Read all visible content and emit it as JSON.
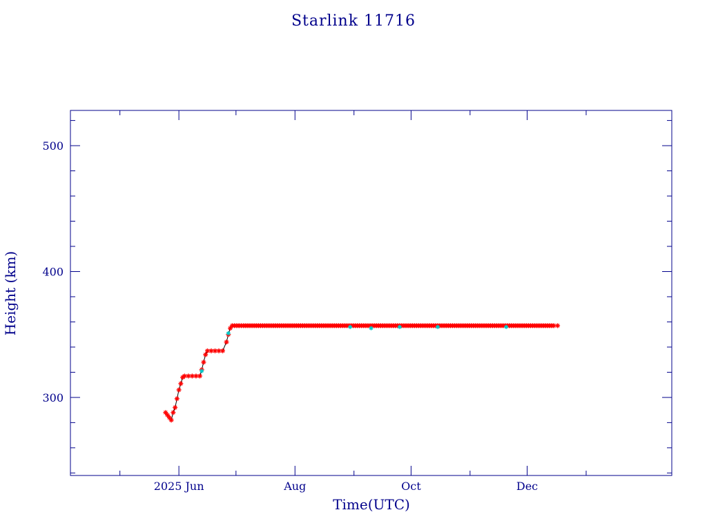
{
  "chart_data": {
    "type": "scatter",
    "title": "Starlink 11716",
    "xlabel": "Time(UTC)",
    "ylabel": "Height (km)",
    "x_axis_type": "date",
    "xlim": [
      "2025-04-05",
      "2026-02-15"
    ],
    "ylim": [
      238,
      528
    ],
    "x_ticks": [
      {
        "date": "2025-06-01",
        "label": "2025 Jun"
      },
      {
        "date": "2025-08-01",
        "label": "Aug"
      },
      {
        "date": "2025-10-01",
        "label": "Oct"
      },
      {
        "date": "2025-12-01",
        "label": "Dec"
      }
    ],
    "y_ticks": [
      300,
      400,
      500
    ],
    "grid": false,
    "legend": "none",
    "colors": {
      "axis": "#00008b",
      "series_primary": "#ff0000",
      "series_secondary": "#00cccc",
      "line": "#000000"
    },
    "series": [
      {
        "marker": "star",
        "color": "#ff0000",
        "points": [
          [
            "2025-05-25",
            288
          ],
          [
            "2025-05-26",
            286
          ],
          [
            "2025-05-27",
            284
          ],
          [
            "2025-05-28",
            282
          ],
          [
            "2025-05-29",
            288
          ],
          [
            "2025-05-30",
            292
          ],
          [
            "2025-05-31",
            299
          ],
          [
            "2025-06-01",
            306
          ],
          [
            "2025-06-02",
            311
          ],
          [
            "2025-06-03",
            316
          ],
          [
            "2025-06-04",
            317
          ],
          [
            "2025-06-06",
            317
          ],
          [
            "2025-06-08",
            317
          ],
          [
            "2025-06-10",
            317
          ],
          [
            "2025-06-12",
            317
          ],
          [
            "2025-06-13",
            322
          ],
          [
            "2025-06-14",
            328
          ],
          [
            "2025-06-15",
            334
          ],
          [
            "2025-06-16",
            337
          ],
          [
            "2025-06-18",
            337
          ],
          [
            "2025-06-20",
            337
          ],
          [
            "2025-06-22",
            337
          ],
          [
            "2025-06-24",
            337
          ],
          [
            "2025-06-26",
            344
          ],
          [
            "2025-06-27",
            350
          ],
          [
            "2025-06-28",
            355
          ],
          [
            "2025-06-29",
            357
          ],
          [
            "2025-07-05",
            357
          ],
          [
            "2025-07-15",
            357
          ],
          [
            "2025-07-25",
            357
          ],
          [
            "2025-08-05",
            357
          ],
          [
            "2025-08-15",
            357
          ],
          [
            "2025-08-25",
            357
          ],
          [
            "2025-09-05",
            357
          ],
          [
            "2025-09-15",
            357
          ],
          [
            "2025-09-25",
            357
          ],
          [
            "2025-10-05",
            357
          ],
          [
            "2025-10-15",
            357
          ],
          [
            "2025-10-25",
            357
          ],
          [
            "2025-11-05",
            357
          ],
          [
            "2025-11-15",
            357
          ],
          [
            "2025-11-25",
            357
          ],
          [
            "2025-12-05",
            357
          ],
          [
            "2025-12-15",
            357
          ],
          [
            "2025-12-17",
            357
          ]
        ]
      },
      {
        "marker": "star",
        "color": "#00cccc",
        "points": [
          [
            "2025-06-13",
            321
          ],
          [
            "2025-06-27",
            351
          ],
          [
            "2025-08-30",
            356
          ],
          [
            "2025-09-10",
            355
          ],
          [
            "2025-09-25",
            356
          ],
          [
            "2025-10-15",
            356
          ],
          [
            "2025-11-20",
            356
          ]
        ]
      }
    ]
  }
}
